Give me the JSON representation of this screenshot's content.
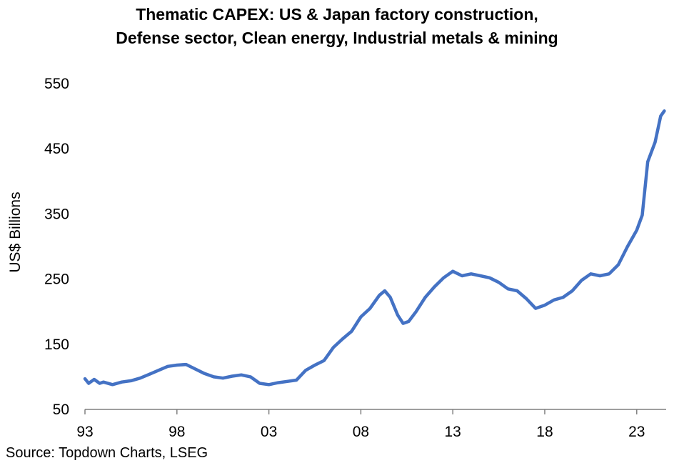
{
  "title_lines": [
    "Thematic CAPEX: US & Japan factory construction,",
    "Defense sector, Clean energy, Industrial metals & mining"
  ],
  "source": "Source: Topdown Charts, LSEG",
  "chart_data": {
    "type": "line",
    "title": "Thematic CAPEX: US & Japan factory construction, Defense sector, Clean energy, Industrial metals & mining",
    "xlabel": "",
    "ylabel": "US$ Billions",
    "xlim": [
      1993,
      2024.6
    ],
    "ylim": [
      50,
      550
    ],
    "x_ticks": [
      "93",
      "98",
      "03",
      "08",
      "13",
      "18",
      "23"
    ],
    "y_ticks": [
      "50",
      "150",
      "250",
      "350",
      "450",
      "550"
    ],
    "grid": false,
    "legend": "none",
    "color": "#4472C4",
    "x": [
      1993.0,
      1993.2,
      1993.5,
      1993.8,
      1994.0,
      1994.5,
      1995.0,
      1995.5,
      1996.0,
      1996.5,
      1997.0,
      1997.5,
      1998.0,
      1998.5,
      1999.0,
      1999.5,
      2000.0,
      2000.5,
      2001.0,
      2001.5,
      2002.0,
      2002.5,
      2003.0,
      2003.5,
      2004.0,
      2004.5,
      2005.0,
      2005.5,
      2006.0,
      2006.5,
      2007.0,
      2007.5,
      2008.0,
      2008.5,
      2009.0,
      2009.3,
      2009.6,
      2010.0,
      2010.3,
      2010.6,
      2011.0,
      2011.5,
      2012.0,
      2012.5,
      2013.0,
      2013.5,
      2014.0,
      2014.5,
      2015.0,
      2015.5,
      2016.0,
      2016.5,
      2017.0,
      2017.5,
      2018.0,
      2018.5,
      2019.0,
      2019.5,
      2020.0,
      2020.5,
      2021.0,
      2021.5,
      2022.0,
      2022.5,
      2023.0,
      2023.3,
      2023.6,
      2024.0,
      2024.3,
      2024.5
    ],
    "values": [
      97,
      90,
      96,
      90,
      92,
      88,
      92,
      94,
      98,
      104,
      110,
      116,
      118,
      119,
      112,
      105,
      100,
      98,
      101,
      103,
      100,
      90,
      88,
      91,
      93,
      95,
      110,
      118,
      125,
      145,
      158,
      170,
      192,
      205,
      225,
      232,
      222,
      195,
      182,
      185,
      200,
      222,
      238,
      252,
      262,
      255,
      258,
      255,
      252,
      245,
      235,
      232,
      220,
      205,
      210,
      218,
      222,
      232,
      248,
      258,
      255,
      258,
      272,
      300,
      325,
      348,
      430,
      460,
      500,
      508
    ]
  }
}
